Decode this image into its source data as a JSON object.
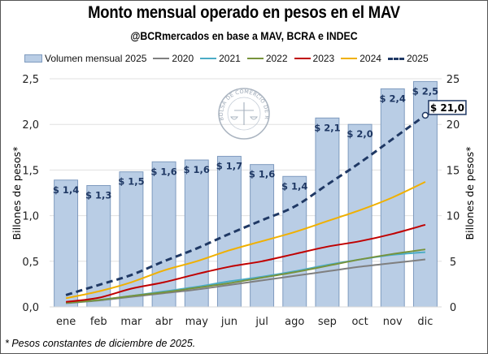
{
  "title": "Monto mensual operado en pesos en el MAV",
  "subtitle": "@BCRmercados en base a MAV, BCRA e INDEC",
  "footnote": "* Pesos constantes de diciembre de 2025.",
  "watermark": "BOLSA DE COMERCIO DE ROSARIO",
  "colors": {
    "bar_fill": "#b9cde5",
    "bar_stroke": "#7f9bbf",
    "gridline": "#e0e0e0",
    "s2020": "#7f7f7f",
    "s2021": "#4bacc6",
    "s2022": "#77933c",
    "s2023": "#c00000",
    "s2024": "#f0b000",
    "s2025": "#1f3864"
  },
  "chart_data": {
    "type": "bar+line",
    "title": "Monto mensual operado en pesos en el MAV",
    "subtitle": "@BCRmercados en base a MAV, BCRA e INDEC",
    "categories": [
      "ene",
      "feb",
      "mar",
      "abr",
      "may",
      "jun",
      "jul",
      "ago",
      "sep",
      "oct",
      "nov",
      "dic"
    ],
    "ylabel_left": "Billones de pesos*",
    "ylabel_right": "Billones de pesos*",
    "ylim_left": [
      0,
      2.5
    ],
    "ylim_right": [
      0,
      25
    ],
    "yticks_left": [
      "0,0",
      "0,5",
      "1,0",
      "1,5",
      "2,0",
      "2,5"
    ],
    "yticks_right": [
      "0",
      "5",
      "10",
      "15",
      "20",
      "25"
    ],
    "grid": true,
    "legend_position": "top",
    "bars": {
      "name": "Volumen mensual 2025",
      "axis": "left",
      "values": [
        1.39,
        1.33,
        1.48,
        1.59,
        1.61,
        1.65,
        1.56,
        1.43,
        2.07,
        2.0,
        2.39,
        2.47
      ],
      "labels": [
        "$ 1,4",
        "$ 1,3",
        "$ 1,5",
        "$ 1,6",
        "$ 1,6",
        "$ 1,7",
        "$ 1,6",
        "$ 1,4",
        "$ 2,1",
        "$ 2,0",
        "$ 2,4",
        "$ 2,5"
      ]
    },
    "series": [
      {
        "name": "2020",
        "axis": "right",
        "style": "solid",
        "color_key": "s2020",
        "values": [
          0.4,
          0.7,
          1.1,
          1.5,
          1.9,
          2.4,
          2.9,
          3.4,
          3.9,
          4.4,
          4.8,
          5.2
        ]
      },
      {
        "name": "2021",
        "axis": "right",
        "style": "solid",
        "color_key": "s2021",
        "values": [
          0.45,
          0.75,
          1.2,
          1.7,
          2.2,
          2.8,
          3.3,
          3.9,
          4.6,
          5.2,
          5.7,
          6.0
        ]
      },
      {
        "name": "2022",
        "axis": "right",
        "style": "solid",
        "color_key": "s2022",
        "values": [
          0.45,
          0.75,
          1.2,
          1.6,
          2.1,
          2.6,
          3.2,
          3.8,
          4.5,
          5.2,
          5.8,
          6.3
        ]
      },
      {
        "name": "2023",
        "axis": "right",
        "style": "solid",
        "color_key": "s2023",
        "values": [
          0.55,
          1.0,
          2.0,
          2.7,
          3.6,
          4.4,
          5.0,
          5.8,
          6.6,
          7.2,
          8.0,
          9.0
        ]
      },
      {
        "name": "2024",
        "axis": "right",
        "style": "solid",
        "color_key": "s2024",
        "values": [
          0.95,
          1.7,
          2.7,
          4.0,
          5.0,
          6.2,
          7.2,
          8.2,
          9.4,
          10.6,
          12.0,
          13.7
        ]
      },
      {
        "name": "2025",
        "axis": "right",
        "style": "dashed",
        "color_key": "s2025",
        "values": [
          1.3,
          2.4,
          3.5,
          5.0,
          6.4,
          8.0,
          9.5,
          11.0,
          13.4,
          15.8,
          18.4,
          21.0
        ],
        "end_label": "$ 21,0"
      }
    ]
  },
  "legend": [
    {
      "label": "Volumen mensual 2025",
      "kind": "bar"
    },
    {
      "label": "2020",
      "kind": "line",
      "color_key": "s2020"
    },
    {
      "label": "2021",
      "kind": "line",
      "color_key": "s2021"
    },
    {
      "label": "2022",
      "kind": "line",
      "color_key": "s2022"
    },
    {
      "label": "2023",
      "kind": "line",
      "color_key": "s2023"
    },
    {
      "label": "2024",
      "kind": "line",
      "color_key": "s2024"
    },
    {
      "label": "2025",
      "kind": "dash",
      "color_key": "s2025"
    }
  ]
}
